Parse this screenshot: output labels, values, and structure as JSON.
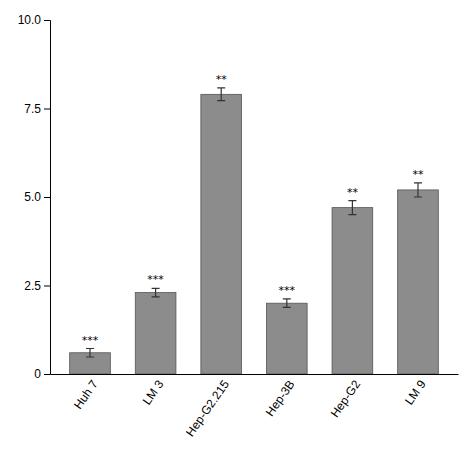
{
  "chart_data": {
    "type": "bar",
    "categories": [
      "Huh 7",
      "LM 3",
      "Hep-G2.215",
      "Hep-3B",
      "Hep-G2",
      "LM 9"
    ],
    "values": [
      0.6,
      2.3,
      7.9,
      2.0,
      4.7,
      5.2
    ],
    "errors": [
      0.12,
      0.12,
      0.18,
      0.12,
      0.2,
      0.2
    ],
    "annotations": [
      "***",
      "***",
      "**",
      "***",
      "**",
      "**"
    ],
    "color": "#8c8c8c",
    "ylim": [
      0,
      10
    ],
    "yticks": [
      0,
      2.5,
      {
        "value": 5.0,
        "label": "5.0"
      },
      7.5,
      {
        "value": 10.0,
        "label": "10.0"
      }
    ],
    "grid": false
  }
}
